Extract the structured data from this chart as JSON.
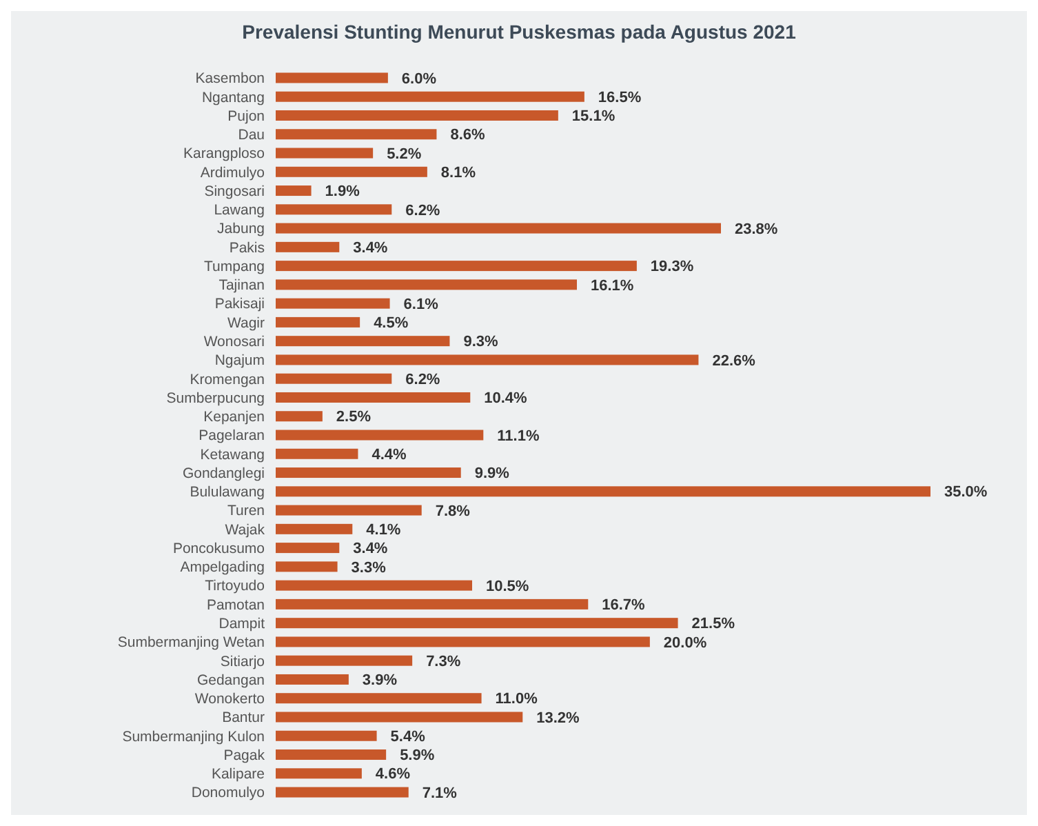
{
  "chart_data": {
    "type": "bar",
    "orientation": "horizontal",
    "title": "Prevalensi Stunting Menurut Puskesmas pada Agustus 2021",
    "categories": [
      "Kasembon",
      "Ngantang",
      "Pujon",
      "Dau",
      "Karangploso",
      "Ardimulyo",
      "Singosari",
      "Lawang",
      "Jabung",
      "Pakis",
      "Tumpang",
      "Tajinan",
      "Pakisaji",
      "Wagir",
      "Wonosari",
      "Ngajum",
      "Kromengan",
      "Sumberpucung",
      "Kepanjen",
      "Pagelaran",
      "Ketawang",
      "Gondanglegi",
      "Bululawang",
      "Turen",
      "Wajak",
      "Poncokusumo",
      "Ampelgading",
      "Tirtoyudo",
      "Pamotan",
      "Dampit",
      "Sumbermanjing Wetan",
      "Sitiarjo",
      "Gedangan",
      "Wonokerto",
      "Bantur",
      "Sumbermanjing Kulon",
      "Pagak",
      "Kalipare",
      "Donomulyo"
    ],
    "values": [
      6.0,
      16.5,
      15.1,
      8.6,
      5.2,
      8.1,
      1.9,
      6.2,
      23.8,
      3.4,
      19.3,
      16.1,
      6.1,
      4.5,
      9.3,
      22.6,
      6.2,
      10.4,
      2.5,
      11.1,
      4.4,
      9.9,
      35.0,
      7.8,
      4.1,
      3.4,
      3.3,
      10.5,
      16.7,
      21.5,
      20.0,
      7.3,
      3.9,
      11.0,
      13.2,
      5.4,
      5.9,
      4.6,
      7.1
    ],
    "value_labels": [
      "6.0%",
      "16.5%",
      "15.1%",
      "8.6%",
      "5.2%",
      "8.1%",
      "1.9%",
      "6.2%",
      "23.8%",
      "3.4%",
      "19.3%",
      "16.1%",
      "6.1%",
      "4.5%",
      "9.3%",
      "22.6%",
      "6.2%",
      "10.4%",
      "2.5%",
      "11.1%",
      "4.4%",
      "9.9%",
      "35.0%",
      "7.8%",
      "4.1%",
      "3.4%",
      "3.3%",
      "10.5%",
      "16.7%",
      "21.5%",
      "20.0%",
      "7.3%",
      "3.9%",
      "11.0%",
      "13.2%",
      "5.4%",
      "5.9%",
      "4.6%",
      "7.1%"
    ],
    "color": "#c8582a"
  }
}
